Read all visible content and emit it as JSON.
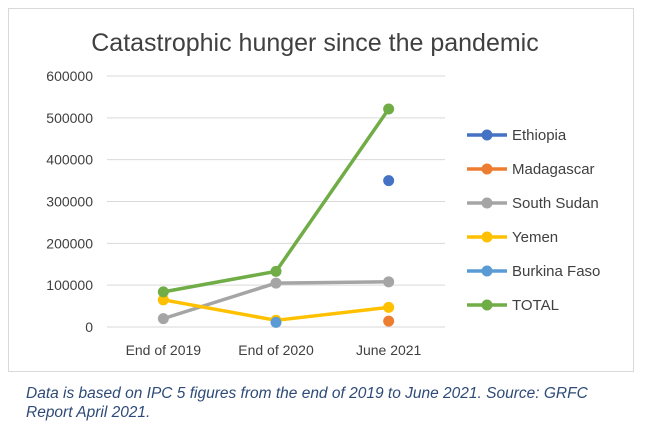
{
  "chart_data": {
    "type": "line",
    "title": "Catastrophic hunger since the pandemic",
    "categories": [
      "End of 2019",
      "End of 2020",
      "June 2021"
    ],
    "ylim": [
      0,
      600000
    ],
    "yticks": [
      0,
      100000,
      200000,
      300000,
      400000,
      500000,
      600000
    ],
    "ytick_labels": [
      "0",
      "100000",
      "200000",
      "300000",
      "400000",
      "500000",
      "600000"
    ],
    "grid": true,
    "legend_position": "right",
    "series": [
      {
        "name": "Ethiopia",
        "color": "#4472c4",
        "values": [
          null,
          null,
          350000
        ]
      },
      {
        "name": "Madagascar",
        "color": "#ed7d31",
        "values": [
          null,
          null,
          14000
        ]
      },
      {
        "name": "South Sudan",
        "color": "#a5a5a5",
        "values": [
          20000,
          105000,
          108000
        ]
      },
      {
        "name": "Yemen",
        "color": "#ffc000",
        "values": [
          65000,
          16000,
          47000
        ]
      },
      {
        "name": "Burkina Faso",
        "color": "#5b9bd5",
        "values": [
          null,
          11000,
          null
        ]
      },
      {
        "name": "TOTAL",
        "color": "#70ad47",
        "values": [
          84000,
          133000,
          521000
        ]
      }
    ]
  },
  "caption": "Data is based on IPC 5 figures from the end of 2019 to June 2021. Source: GRFC Report April 2021."
}
